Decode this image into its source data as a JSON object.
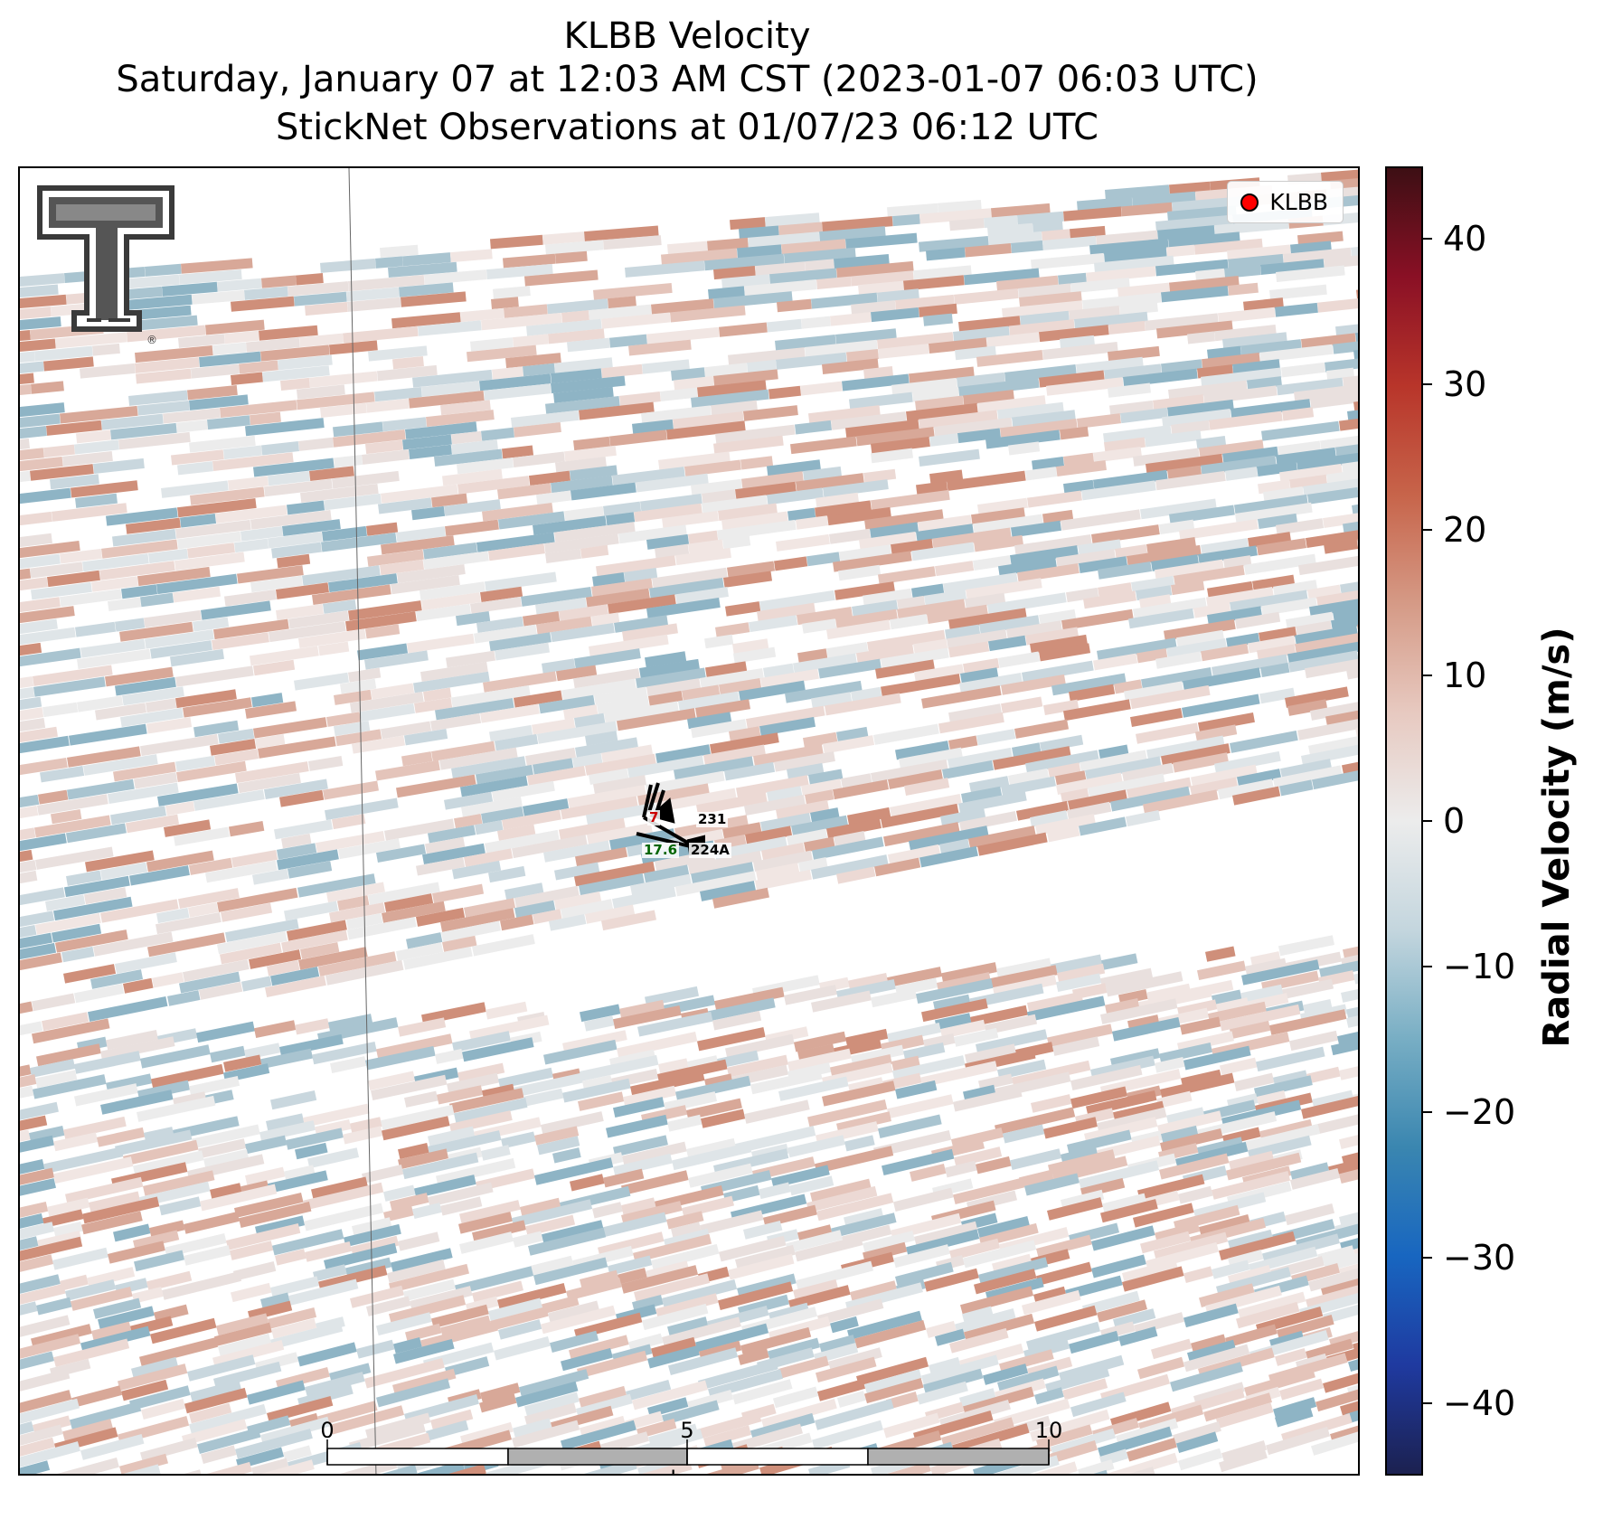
{
  "title": {
    "line1": "KLBB Velocity",
    "line2": "Saturday, January 07 at 12:03 AM CST (2023-01-07 06:03 UTC)",
    "line3": "StickNet Observations at 01/07/23 06:12 UTC"
  },
  "legend": {
    "label": "KLBB",
    "marker_color": "#ff0000"
  },
  "logo": {
    "name": "texas-tech-double-t-logo",
    "mark": "®"
  },
  "stations": [
    {
      "id": "231",
      "value": "7",
      "value_color": "#cc0000"
    },
    {
      "id": "224A",
      "value": "17.6",
      "value_color": "#006400"
    }
  ],
  "scalebar": {
    "ticks": [
      "0",
      "5",
      "10"
    ],
    "unit": "km"
  },
  "colorbar": {
    "label": "Radial Velocity (m/s)",
    "vmin": -45,
    "vmax": 45,
    "ticks": [
      "40",
      "30",
      "20",
      "10",
      "0",
      "−10",
      "−20",
      "−30",
      "−40"
    ],
    "tick_values": [
      40,
      30,
      20,
      10,
      0,
      -10,
      -20,
      -30,
      -40
    ],
    "colors": [
      "#1c2150",
      "#1f3aa0",
      "#1866c0",
      "#3a86b0",
      "#78aec4",
      "#c4d6de",
      "#ececec",
      "#e7c9c0",
      "#d59a86",
      "#c7644a",
      "#b8352a",
      "#8a1025",
      "#3d0f14"
    ]
  }
}
